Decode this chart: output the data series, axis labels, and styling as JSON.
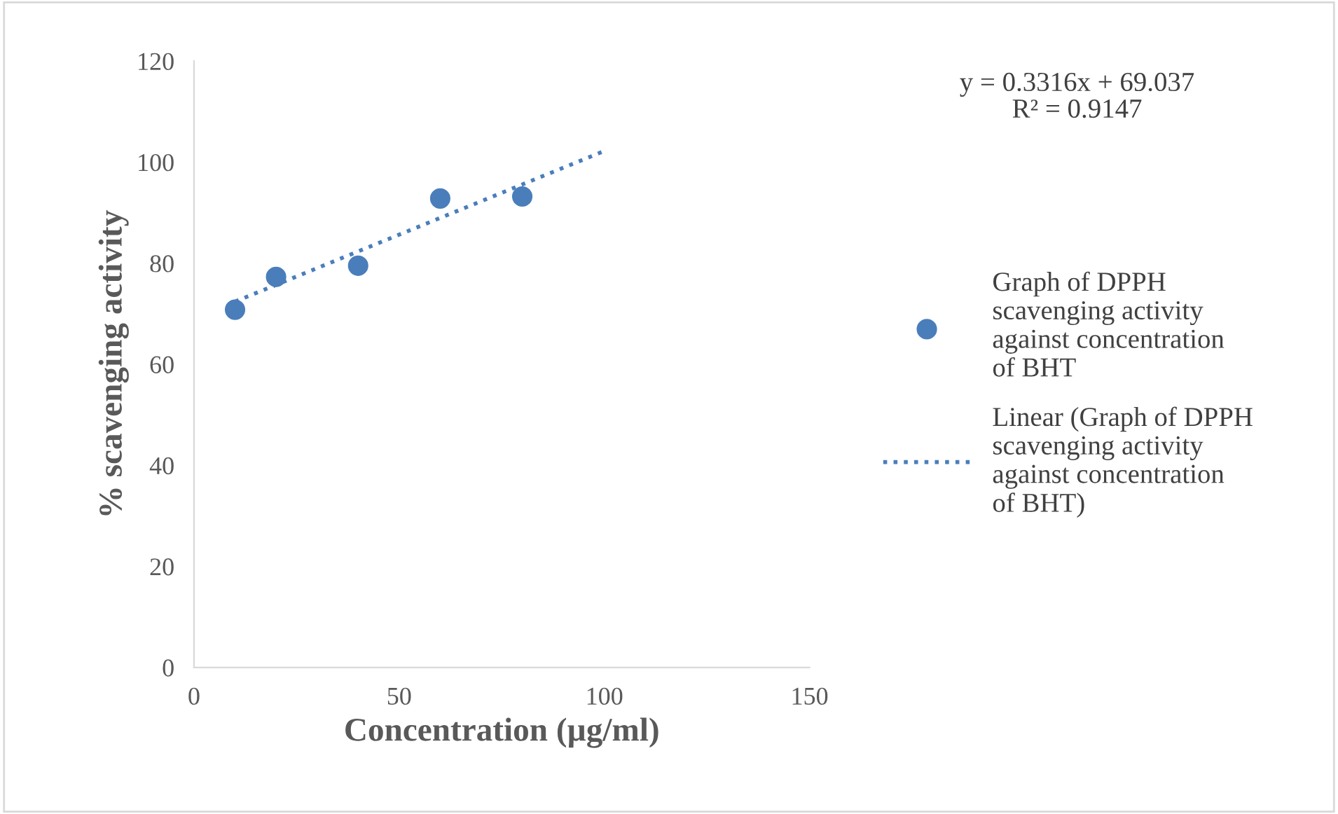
{
  "chart_data": {
    "type": "scatter",
    "xlabel": "Concentration (µg/ml)",
    "ylabel": "% scavenging activity",
    "annotations": [
      "y = 0.3316x + 69.037\nR² = 0.9147"
    ],
    "series": [
      {
        "name": "Graph of DPPH scavenging activity against concentration of BHT",
        "color": "#4a7ebb",
        "x": [
          10,
          20,
          40,
          60,
          80
        ],
        "values": [
          70.8,
          77.3,
          79.5,
          92.8,
          93.2
        ],
        "marker": "circle"
      },
      {
        "name": "Linear (Graph of DPPH scavenging activity against concentration of BHT)",
        "type": "line",
        "color": "#4a7ebb",
        "x": [
          10,
          100
        ],
        "values": [
          72.4,
          102.2
        ],
        "line_style": "dotted",
        "marker": "none"
      }
    ],
    "xlim": [
      0,
      150
    ],
    "xticks": [
      0,
      50,
      100,
      150
    ],
    "ylim": [
      0,
      120
    ],
    "yticks": [
      0,
      20,
      40,
      60,
      80,
      100,
      120
    ],
    "grid": false,
    "legend": "right"
  }
}
